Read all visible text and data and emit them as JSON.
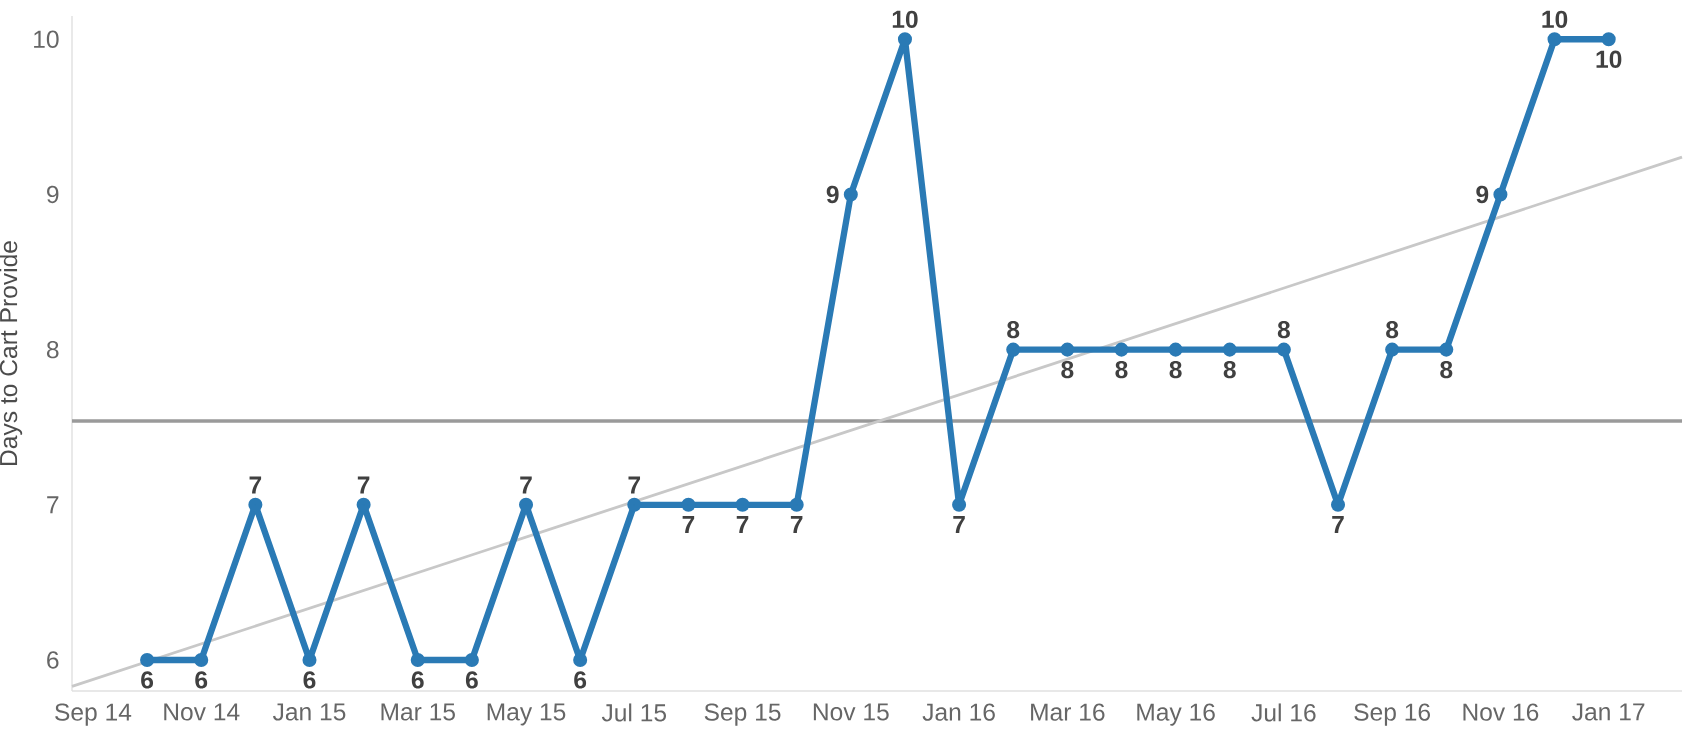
{
  "chart_data": {
    "type": "line",
    "ylabel": "Days to Cart Provide",
    "x": [
      "2014-10",
      "2014-11",
      "2014-12",
      "2015-01",
      "2015-02",
      "2015-03",
      "2015-04",
      "2015-05",
      "2015-06",
      "2015-07",
      "2015-08",
      "2015-09",
      "2015-10",
      "2015-11",
      "2015-12",
      "2016-01",
      "2016-02",
      "2016-03",
      "2016-04",
      "2016-05",
      "2016-06",
      "2016-07",
      "2016-08",
      "2016-09",
      "2016-10",
      "2016-11",
      "2016-12",
      "2017-01"
    ],
    "series": [
      {
        "color": "#2a7ab5",
        "values": [
          6,
          6,
          7,
          6,
          7,
          6,
          6,
          7,
          6,
          7,
          7,
          7,
          7,
          9,
          10,
          7,
          8,
          8,
          8,
          8,
          8,
          8,
          7,
          8,
          8,
          9,
          10,
          10
        ],
        "value_labels": [
          "6",
          "6",
          "7",
          "6",
          "7",
          "6",
          "6",
          "7",
          "6",
          "7",
          "7",
          "7",
          "7",
          "9",
          "10",
          "7",
          "8",
          "8",
          "8",
          "8",
          "8",
          "8",
          "7",
          "8",
          "8",
          "9",
          "10",
          "10"
        ]
      },
      {
        "type": "line",
        "color": "#c8c8c8",
        "marker": "none",
        "x": [
          "2014-08-20",
          "2017-02-12"
        ],
        "values": [
          5.83,
          9.24
        ]
      }
    ],
    "marker": "circle",
    "line_style": "solid",
    "grid": false,
    "legend": false,
    "ref_lines": [
      {
        "axis": "y",
        "value": 7.54,
        "color": "#9a9a9a"
      }
    ],
    "xlim": [
      "2014-08-20",
      "2017-02-12"
    ],
    "ylim": [
      5.8,
      10.15
    ],
    "yticks": [
      6,
      7,
      8,
      9,
      10
    ],
    "xticks": [
      {
        "value": "2014-09",
        "label": "Sep 14"
      },
      {
        "value": "2014-11",
        "label": "Nov 14"
      },
      {
        "value": "2015-01",
        "label": "Jan 15"
      },
      {
        "value": "2015-03",
        "label": "Mar 15"
      },
      {
        "value": "2015-05",
        "label": "May 15"
      },
      {
        "value": "2015-07",
        "label": "Jul 15"
      },
      {
        "value": "2015-09",
        "label": "Sep 15"
      },
      {
        "value": "2015-11",
        "label": "Nov 15"
      },
      {
        "value": "2016-01",
        "label": "Jan 16"
      },
      {
        "value": "2016-03",
        "label": "Mar 16"
      },
      {
        "value": "2016-05",
        "label": "May 16"
      },
      {
        "value": "2016-07",
        "label": "Jul 16"
      },
      {
        "value": "2016-09",
        "label": "Sep 16"
      },
      {
        "value": "2016-11",
        "label": "Nov 16"
      },
      {
        "value": "2017-01",
        "label": "Jan 17"
      }
    ]
  }
}
